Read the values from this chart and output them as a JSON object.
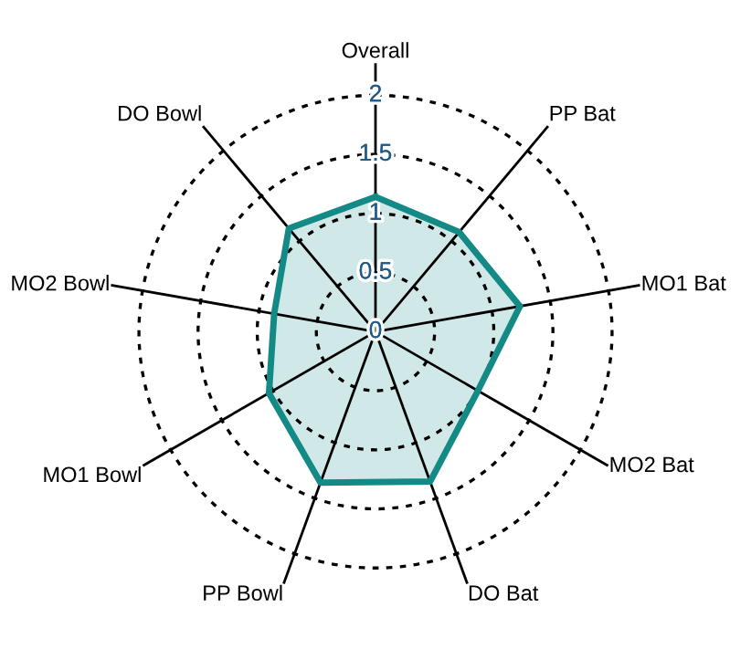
{
  "chart_data": {
    "type": "radar",
    "categories": [
      "Overall",
      "PP Bat",
      "MO1 Bat",
      "MO2 Bat",
      "DO Bat",
      "PP Bowl",
      "MO1 Bowl",
      "MO2 Bowl",
      "DO Bowl"
    ],
    "series": [
      {
        "color": "#138a86",
        "values": [
          1.14,
          1.1,
          1.24,
          1.0,
          1.35,
          1.36,
          1.04,
          0.87,
          1.14
        ]
      }
    ],
    "ylim": [
      0,
      2
    ],
    "yticks": [
      0,
      0.5,
      1,
      1.5,
      2
    ],
    "grid": true,
    "line_style": "solid",
    "marker": "none"
  }
}
